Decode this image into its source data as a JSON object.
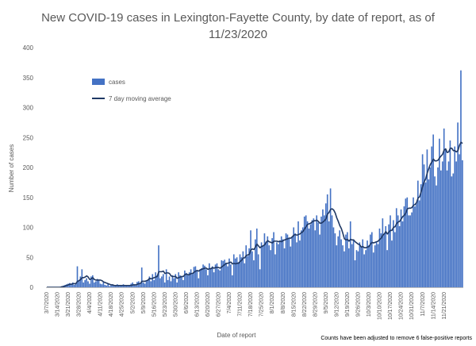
{
  "chart_data": {
    "type": "bar",
    "title_lines": [
      "New COVID-19 cases in Lexington-Fayette County, by date of report, as of",
      "11/23/2020"
    ],
    "xlabel": "Date of report",
    "ylabel": "Number of cases",
    "ylim": [
      0,
      400
    ],
    "yticks": [
      0,
      50,
      100,
      150,
      200,
      250,
      300,
      350,
      400
    ],
    "grid": false,
    "legend_position": "top-left",
    "start_date": "3/7/2020",
    "x_tick_labels": [
      "3/7/2020",
      "3/14/2020",
      "3/21/2020",
      "3/28/2020",
      "4/4/2020",
      "4/11/2020",
      "4/18/2020",
      "4/25/2020",
      "5/2/2020",
      "5/9/2020",
      "5/16/2020",
      "5/23/2020",
      "5/30/2020",
      "6/6/2020",
      "6/13/2020",
      "6/20/2020",
      "6/27/2020",
      "7/4/2020",
      "7/11/2020",
      "7/18/2020",
      "7/25/2020",
      "8/1/2020",
      "8/8/2020",
      "8/15/2020",
      "8/22/2020",
      "8/29/2020",
      "9/5/2020",
      "9/12/2020",
      "9/19/2020",
      "9/26/2020",
      "10/3/2020",
      "10/10/2020",
      "10/17/2020",
      "10/24/2020",
      "10/31/2020",
      "11/7/2020",
      "11/14/2020",
      "11/21/2020"
    ],
    "series": [
      {
        "name": "cases",
        "kind": "bar",
        "color": "#4472C4",
        "values": [
          0,
          0,
          0,
          0,
          0,
          0,
          0,
          0,
          0,
          1,
          2,
          3,
          4,
          5,
          6,
          7,
          5,
          8,
          4,
          6,
          35,
          10,
          18,
          30,
          8,
          12,
          15,
          10,
          6,
          18,
          20,
          8,
          10,
          14,
          12,
          6,
          5,
          8,
          4,
          3,
          6,
          2,
          3,
          4,
          2,
          3,
          5,
          2,
          4,
          3,
          5,
          4,
          3,
          2,
          4,
          6,
          8,
          5,
          3,
          9,
          10,
          5,
          33,
          8,
          6,
          10,
          12,
          18,
          10,
          22,
          12,
          25,
          20,
          70,
          15,
          18,
          22,
          8,
          30,
          12,
          18,
          10,
          20,
          15,
          22,
          8,
          25,
          20,
          18,
          12,
          28,
          24,
          20,
          25,
          30,
          22,
          34,
          35,
          28,
          15,
          30,
          32,
          38,
          36,
          30,
          20,
          40,
          32,
          35,
          25,
          38,
          40,
          30,
          28,
          45,
          44,
          46,
          40,
          35,
          48,
          38,
          20,
          55,
          48,
          50,
          42,
          55,
          50,
          60,
          40,
          70,
          52,
          65,
          95,
          60,
          45,
          80,
          98,
          55,
          30,
          75,
          70,
          90,
          76,
          85,
          70,
          62,
          82,
          92,
          55,
          75,
          72,
          78,
          85,
          80,
          65,
          90,
          88,
          82,
          68,
          85,
          100,
          90,
          75,
          110,
          78,
          95,
          100,
          118,
          120,
          110,
          98,
          105,
          112,
          115,
          95,
          120,
          108,
          88,
          118,
          130,
          120,
          140,
          155,
          110,
          165,
          120,
          100,
          90,
          70,
          85,
          95,
          80,
          70,
          60,
          88,
          92,
          65,
          110,
          72,
          80,
          45,
          62,
          60,
          75,
          68,
          80,
          55,
          62,
          78,
          70,
          88,
          92,
          58,
          70,
          75,
          72,
          98,
          90,
          115,
          88,
          102,
          62,
          105,
          120,
          78,
          112,
          92,
          132,
          120,
          102,
          130,
          110,
          135,
          148,
          150,
          120,
          120,
          125,
          150,
          135,
          140,
          178,
          145,
          172,
          222,
          205,
          175,
          230,
          180,
          200,
          235,
          255,
          185,
          170,
          200,
          248,
          195,
          210,
          265,
          230,
          195,
          210,
          245,
          185,
          190,
          235,
          210,
          275,
          222,
          362,
          212
        ],
        "note_on_values": "one value per day from 3/7/2020 to 11/23/2020, estimated from bars"
      },
      {
        "name": "7 day moving average",
        "kind": "line",
        "color": "#1F3864",
        "values": [
          0,
          0,
          0,
          0,
          0,
          0,
          0,
          0,
          0,
          0,
          1,
          1,
          2,
          3,
          4,
          5,
          5,
          6,
          6,
          6,
          10,
          11,
          13,
          16,
          16,
          17,
          19,
          17,
          13,
          14,
          16,
          13,
          12,
          12,
          12,
          12,
          11,
          9,
          8,
          7,
          6,
          5,
          4,
          4,
          3,
          3,
          3,
          3,
          3,
          3,
          3,
          3,
          3,
          3,
          3,
          3,
          4,
          4,
          4,
          5,
          6,
          6,
          10,
          10,
          10,
          11,
          12,
          15,
          14,
          15,
          16,
          17,
          18,
          26,
          26,
          26,
          27,
          23,
          24,
          24,
          23,
          19,
          18,
          18,
          18,
          15,
          16,
          17,
          18,
          18,
          21,
          22,
          21,
          21,
          23,
          23,
          25,
          27,
          28,
          27,
          29,
          30,
          31,
          32,
          32,
          30,
          31,
          31,
          33,
          32,
          33,
          33,
          33,
          32,
          34,
          36,
          38,
          40,
          40,
          41,
          42,
          39,
          40,
          39,
          40,
          40,
          43,
          45,
          49,
          49,
          53,
          54,
          55,
          62,
          64,
          63,
          67,
          72,
          69,
          66,
          68,
          69,
          71,
          75,
          78,
          76,
          75,
          74,
          77,
          77,
          77,
          76,
          77,
          76,
          78,
          79,
          80,
          81,
          82,
          82,
          84,
          87,
          88,
          87,
          88,
          89,
          91,
          93,
          97,
          101,
          105,
          106,
          107,
          109,
          111,
          111,
          112,
          110,
          107,
          107,
          109,
          111,
          114,
          122,
          125,
          130,
          131,
          129,
          124,
          116,
          110,
          103,
          98,
          90,
          81,
          79,
          80,
          77,
          80,
          79,
          79,
          76,
          74,
          72,
          71,
          67,
          68,
          66,
          66,
          67,
          68,
          72,
          75,
          74,
          75,
          76,
          77,
          80,
          82,
          87,
          89,
          93,
          89,
          92,
          95,
          95,
          100,
          101,
          106,
          109,
          110,
          114,
          118,
          120,
          124,
          131,
          132,
          132,
          133,
          137,
          138,
          141,
          149,
          151,
          159,
          168,
          176,
          181,
          191,
          198,
          205,
          209,
          214,
          211,
          211,
          212,
          216,
          219,
          222,
          229,
          231,
          225,
          226,
          232,
          232,
          228,
          228,
          226,
          228,
          237,
          242,
          240
        ],
        "note_on_values": "one value per day, aligned with cases"
      }
    ]
  },
  "legend": {
    "cases_label": "cases",
    "ma_label": "7 day moving average"
  },
  "note": "Counts have been adjusted to remove 6 false-positive reports"
}
